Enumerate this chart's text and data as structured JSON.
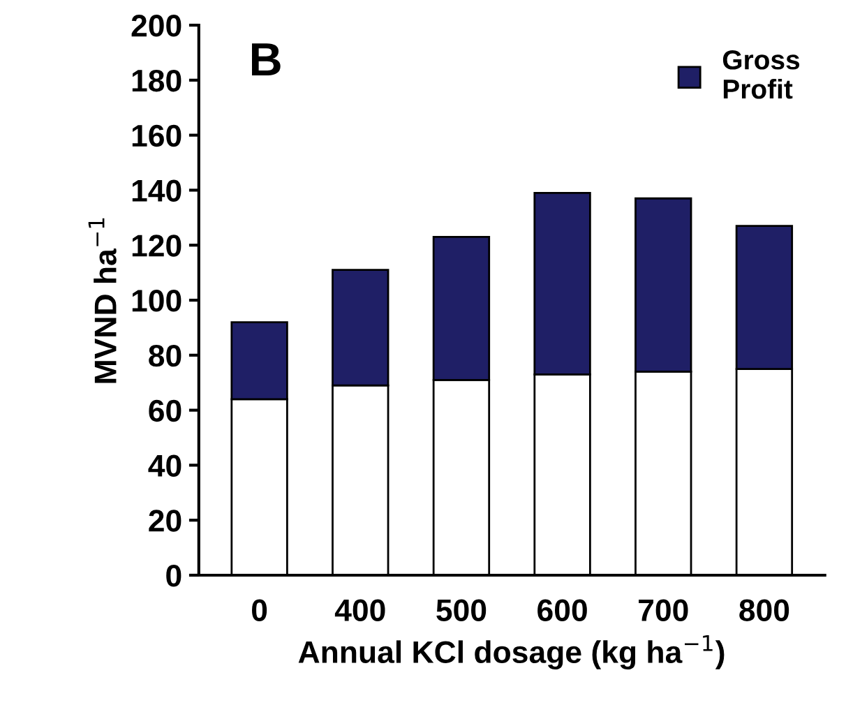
{
  "chart_data": {
    "type": "bar",
    "title": "B",
    "xlabel": "Annual KCl dosage (kg ha$^{−1}$)",
    "ylabel": "MVND ha$^{−1}$",
    "categories": [
      "0",
      "400",
      "500",
      "600",
      "700",
      "800"
    ],
    "stacked": true,
    "series": [
      {
        "color": "#ffffff",
        "values": [
          64,
          69,
          71,
          73,
          74,
          75
        ]
      },
      {
        "name": "Gross Profit",
        "color": "#1f1f66",
        "values": [
          28,
          42,
          52,
          66,
          63,
          52
        ]
      }
    ],
    "ylim": [
      0,
      200
    ],
    "yticks": [
      0,
      20,
      40,
      60,
      80,
      100,
      120,
      140,
      160,
      180,
      200
    ],
    "grid": false,
    "legend": "top right"
  }
}
